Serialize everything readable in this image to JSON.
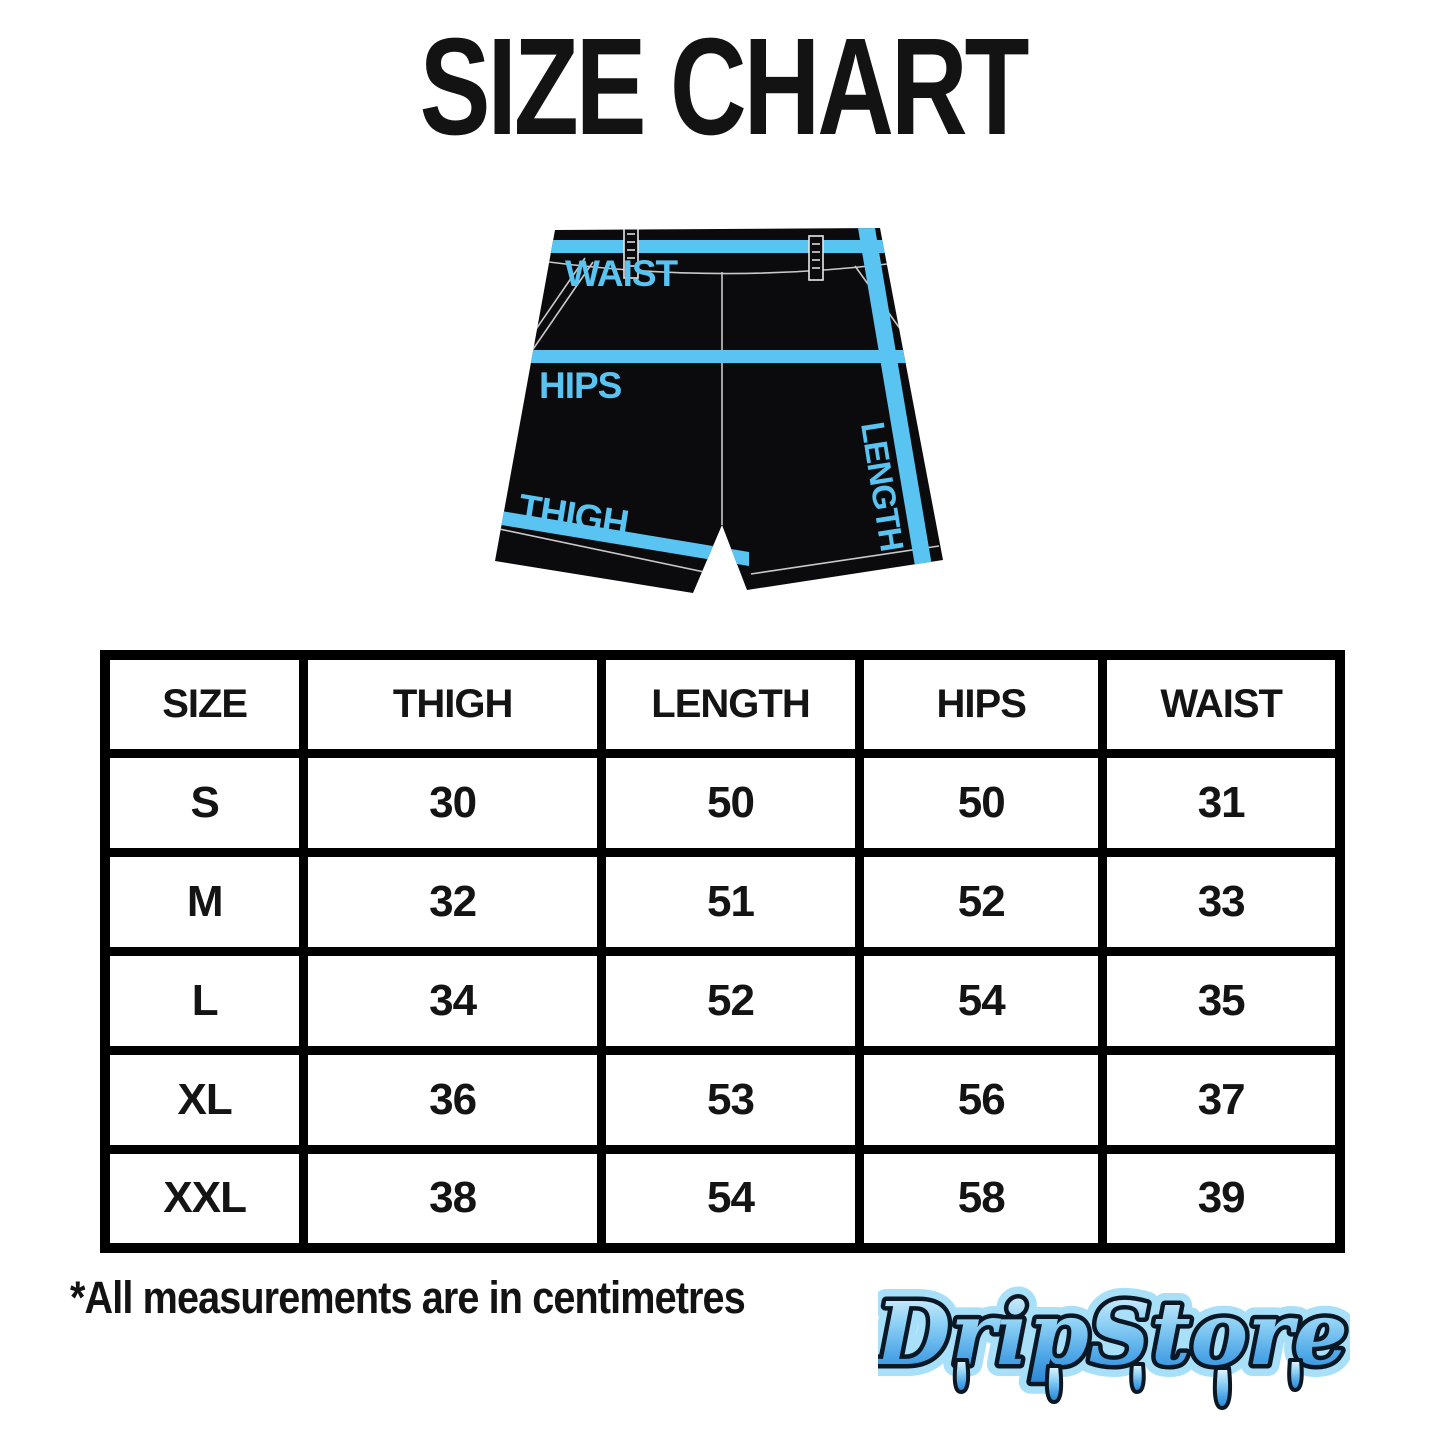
{
  "title": "SIZE CHART",
  "diagram": {
    "labels": {
      "waist": "WAIST",
      "hips": "HIPS",
      "thigh": "THIGH",
      "length": "LENGTH"
    },
    "colors": {
      "measure_highlight": "#59C4F1",
      "garment": "#0B0B0D",
      "seam": "#C9C9C9"
    }
  },
  "chart_data": {
    "type": "table",
    "title": "SIZE CHART",
    "columns": [
      "SIZE",
      "THIGH",
      "LENGTH",
      "HIPS",
      "WAIST"
    ],
    "rows": [
      [
        "S",
        "30",
        "50",
        "50",
        "31"
      ],
      [
        "M",
        "32",
        "51",
        "52",
        "33"
      ],
      [
        "L",
        "34",
        "52",
        "54",
        "35"
      ],
      [
        "XL",
        "36",
        "53",
        "56",
        "37"
      ],
      [
        "XXL",
        "38",
        "54",
        "58",
        "39"
      ]
    ],
    "note": "*All measurements are in centimetres"
  },
  "logo": {
    "text": "DripStore",
    "color_primary": "#4BA5E6",
    "color_outline": "#0A1724",
    "color_glow": "#A8E0FA"
  }
}
